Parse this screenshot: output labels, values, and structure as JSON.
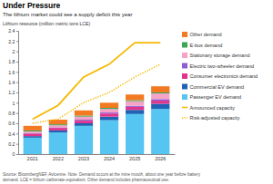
{
  "chart_data": {
    "type": "bar",
    "title": "Under Pressure",
    "subtitle": "The lithium market could see a supply deficit this year",
    "ylabel": "Lithium resource (million metric tons LCE)",
    "source": [
      "Source: BloombergNEF, Avicenne. Note: Demand occurs at the mine mouth, about one year before battery",
      "demand. LCE = lithium carbonate equivalent. Other demand includes pharmaceutical use."
    ],
    "categories": [
      "2021",
      "2022",
      "2023",
      "2024",
      "2025",
      "2026"
    ],
    "stacked": true,
    "grid": false,
    "legend": "right",
    "ylim": [
      0,
      2.4
    ],
    "yticks": [
      0,
      0.2,
      0.4,
      0.6,
      0.8,
      1,
      1.2,
      1.4,
      1.6,
      1.8,
      2,
      2.2,
      2.4
    ],
    "series": [
      {
        "name": "Passenger EV demand",
        "type": "bar",
        "color": "#56c5f2",
        "values": [
          0.32,
          0.42,
          0.55,
          0.66,
          0.78,
          0.88
        ]
      },
      {
        "name": "Commercial EV demand",
        "type": "bar",
        "color": "#1f64b4",
        "values": [
          0.03,
          0.04,
          0.05,
          0.07,
          0.08,
          0.1
        ]
      },
      {
        "name": "Consumer electronics demand",
        "type": "bar",
        "color": "#e2348d",
        "values": [
          0.05,
          0.05,
          0.05,
          0.06,
          0.06,
          0.06
        ]
      },
      {
        "name": "Electric two-wheeler demand",
        "type": "bar",
        "color": "#8e5fd3",
        "values": [
          0.01,
          0.01,
          0.02,
          0.02,
          0.02,
          0.03
        ]
      },
      {
        "name": "Stationary storage demand",
        "type": "bar",
        "color": "#f6a3c8",
        "values": [
          0.03,
          0.04,
          0.06,
          0.07,
          0.09,
          0.11
        ]
      },
      {
        "name": "E-bus demand",
        "type": "bar",
        "color": "#3aa655",
        "values": [
          0.02,
          0.02,
          0.02,
          0.02,
          0.02,
          0.02
        ]
      },
      {
        "name": "Other demand",
        "type": "bar",
        "color": "#f37a22",
        "values": [
          0.09,
          0.09,
          0.1,
          0.1,
          0.11,
          0.12
        ]
      },
      {
        "name": "Announced capacity",
        "type": "line",
        "line_style": "solid",
        "color": "#f5b800",
        "values": [
          0.68,
          0.95,
          1.5,
          1.75,
          2.17,
          2.17
        ]
      },
      {
        "name": "Risk-adjusted capacity",
        "type": "line",
        "line_style": "dotted",
        "color": "#f5b800",
        "values": [
          0.6,
          0.68,
          1.0,
          1.2,
          1.5,
          1.75
        ]
      }
    ]
  }
}
